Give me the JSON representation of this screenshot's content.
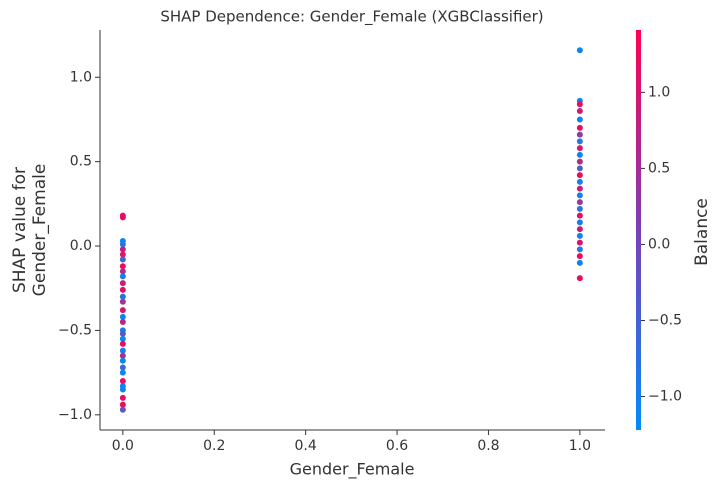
{
  "chart_data": {
    "type": "scatter",
    "title": "SHAP Dependence: Gender_Female (XGBClassifier)",
    "xlabel": "Gender_Female",
    "ylabel_lines": [
      "SHAP value for",
      "Gender_Female"
    ],
    "colorbar_label": "Balance",
    "colormap": [
      "#008bfb",
      "#ff0052"
    ],
    "x": [
      0,
      0,
      0,
      0,
      0,
      0,
      0,
      0,
      0,
      0,
      0,
      0,
      0,
      0,
      0,
      0,
      0,
      0,
      0,
      0,
      0,
      0,
      0,
      0,
      0,
      0,
      0,
      0,
      0,
      0,
      0,
      0,
      1,
      1,
      1,
      1,
      1,
      1,
      1,
      1,
      1,
      1,
      1,
      1,
      1,
      1,
      1,
      1,
      1,
      1,
      1,
      1,
      1,
      1,
      1,
      1,
      1,
      1,
      1
    ],
    "values": [
      0.18,
      0.17,
      0.03,
      0.01,
      -0.02,
      -0.05,
      -0.08,
      -0.12,
      -0.15,
      -0.18,
      -0.22,
      -0.26,
      -0.3,
      -0.33,
      -0.38,
      -0.42,
      -0.45,
      -0.5,
      -0.52,
      -0.55,
      -0.58,
      -0.62,
      -0.65,
      -0.68,
      -0.72,
      -0.75,
      -0.8,
      -0.83,
      -0.85,
      -0.9,
      -0.94,
      -0.97,
      1.16,
      0.86,
      0.84,
      0.8,
      0.75,
      0.7,
      0.66,
      0.62,
      0.58,
      0.54,
      0.5,
      0.46,
      0.42,
      0.38,
      0.34,
      0.3,
      0.26,
      0.22,
      0.18,
      0.14,
      0.1,
      0.06,
      0.02,
      -0.02,
      -0.06,
      -0.1,
      -0.19
    ],
    "color_values": [
      1.2,
      1.1,
      -1.1,
      -0.9,
      0.8,
      1.0,
      -0.5,
      1.2,
      0.6,
      -1.0,
      0.9,
      1.1,
      -0.8,
      0.4,
      1.0,
      -1.1,
      0.7,
      -0.9,
      -0.3,
      -1.1,
      1.2,
      -1.0,
      0.5,
      -1.1,
      -0.6,
      -1.1,
      1.2,
      -1.0,
      -1.1,
      1.1,
      1.2,
      -0.2,
      -1.1,
      -1.0,
      1.1,
      0.9,
      -1.1,
      1.2,
      0.2,
      -0.9,
      1.0,
      -1.1,
      0.6,
      -0.4,
      1.2,
      -1.0,
      0.9,
      -1.1,
      0.3,
      -0.8,
      1.1,
      -1.0,
      0.8,
      -1.1,
      1.0,
      -0.9,
      1.2,
      -1.1,
      1.2
    ],
    "xlim": [
      -0.05,
      1.055
    ],
    "ylim": [
      -1.09,
      1.28
    ],
    "clim": [
      -1.22,
      1.41
    ],
    "xticks": [
      {
        "value": 0,
        "label": "0.0"
      },
      {
        "value": 0.2,
        "label": "0.2"
      },
      {
        "value": 0.4,
        "label": "0.4"
      },
      {
        "value": 0.6,
        "label": "0.6"
      },
      {
        "value": 0.8,
        "label": "0.8"
      },
      {
        "value": 1,
        "label": "1.0"
      }
    ],
    "yticks": [
      {
        "value": -1,
        "label": "−1.0"
      },
      {
        "value": -0.5,
        "label": "−0.5"
      },
      {
        "value": 0,
        "label": "0.0"
      },
      {
        "value": 0.5,
        "label": "0.5"
      },
      {
        "value": 1,
        "label": "1.0"
      }
    ],
    "cticks": [
      {
        "value": -1,
        "label": "−1.0"
      },
      {
        "value": -0.5,
        "label": "−0.5"
      },
      {
        "value": 0,
        "label": "0.0"
      },
      {
        "value": 0.5,
        "label": "0.5"
      },
      {
        "value": 1,
        "label": "1.0"
      }
    ],
    "grid": false
  }
}
